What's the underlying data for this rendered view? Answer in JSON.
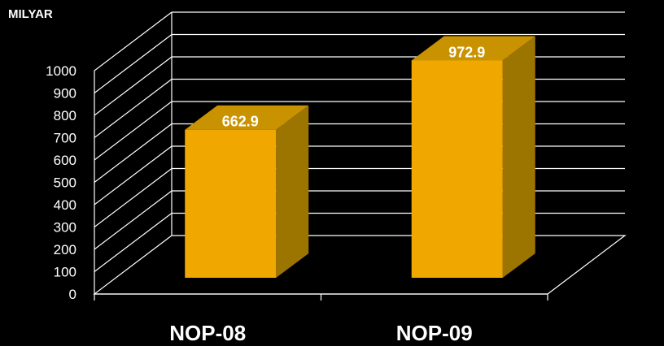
{
  "chart_data": {
    "type": "bar",
    "unit_label": "MILYAR",
    "categories": [
      "NOP-08",
      "NOP-09"
    ],
    "values": [
      662.9,
      972.9
    ],
    "data_labels": [
      "662.9",
      "972.9"
    ],
    "ylim": [
      0,
      1000
    ],
    "yticks": [
      0,
      100,
      200,
      300,
      400,
      500,
      600,
      700,
      800,
      900,
      1000
    ],
    "grid": true,
    "style": "3d-column",
    "colors": {
      "background": "#000000",
      "bar_front": "#F0A800",
      "bar_side": "#9C7400",
      "bar_top": "#C89200",
      "grid": "#FFFFFF",
      "text": "#FFFFFF"
    }
  }
}
